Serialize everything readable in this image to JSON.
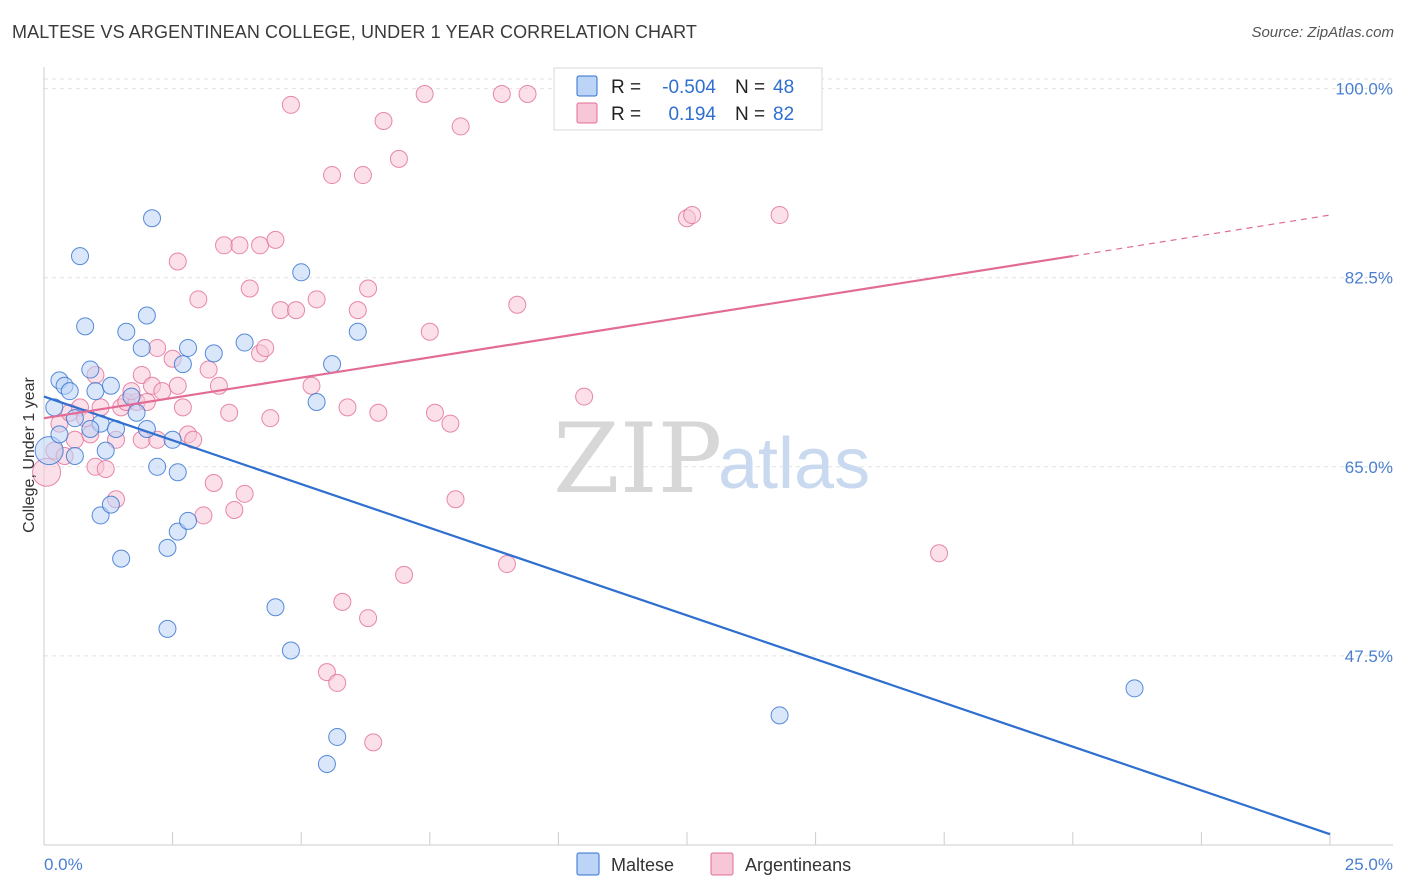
{
  "header": {
    "title": "MALTESE VS ARGENTINEAN COLLEGE, UNDER 1 YEAR CORRELATION CHART",
    "source": "Source: ZipAtlas.com"
  },
  "watermark": {
    "zip": "ZIP",
    "atlas": "atlas"
  },
  "colors": {
    "maltese": "#2f6fcf",
    "maltese_fill": "#bcd4f5",
    "argentineans": "#e26c96",
    "argentineans_fill": "#f7c7d7",
    "grid": "#dddddd",
    "tick_text": "#4a7fd0"
  },
  "stats": {
    "maltese": {
      "r_label": "R =",
      "r_value": "-0.504",
      "n_label": "N =",
      "n_value": "48"
    },
    "argentineans": {
      "r_label": "R =",
      "r_value": "0.194",
      "n_label": "N =",
      "n_value": "82"
    }
  },
  "chart_data": {
    "type": "scatter",
    "title": "MALTESE VS ARGENTINEAN COLLEGE, UNDER 1 YEAR CORRELATION CHART",
    "xlabel": "",
    "ylabel": "College, Under 1 year",
    "xlim": [
      0,
      25
    ],
    "ylim": [
      30,
      102
    ],
    "x_tick_labels": [
      "0.0%",
      "25.0%"
    ],
    "y_ticks": [
      100.0,
      82.5,
      65.0,
      47.5
    ],
    "y_tick_labels": [
      "100.0%",
      "82.5%",
      "65.0%",
      "47.5%"
    ],
    "legend": [
      "Maltese",
      "Argentineans"
    ],
    "series": [
      {
        "name": "Maltese",
        "trend": {
          "x": [
            0.0,
            25.0
          ],
          "y": [
            71.5,
            31.0
          ]
        },
        "points": [
          [
            0.1,
            66.5
          ],
          [
            0.2,
            70.5
          ],
          [
            0.3,
            73
          ],
          [
            0.4,
            72.5
          ],
          [
            0.5,
            72
          ],
          [
            0.6,
            69.5
          ],
          [
            0.6,
            66
          ],
          [
            0.7,
            84.5
          ],
          [
            0.8,
            78
          ],
          [
            0.9,
            74
          ],
          [
            1.0,
            72
          ],
          [
            1.1,
            69
          ],
          [
            1.2,
            66.5
          ],
          [
            1.1,
            60.5
          ],
          [
            1.3,
            72.5
          ],
          [
            1.3,
            61.5
          ],
          [
            1.4,
            68.5
          ],
          [
            1.5,
            56.5
          ],
          [
            1.6,
            77.5
          ],
          [
            1.7,
            71.5
          ],
          [
            1.8,
            70
          ],
          [
            1.9,
            76
          ],
          [
            2.0,
            79
          ],
          [
            2.0,
            68.5
          ],
          [
            2.1,
            88
          ],
          [
            2.2,
            65
          ],
          [
            2.4,
            57.5
          ],
          [
            2.4,
            50
          ],
          [
            2.5,
            67.5
          ],
          [
            2.6,
            64.5
          ],
          [
            2.6,
            59
          ],
          [
            2.7,
            74.5
          ],
          [
            2.8,
            76
          ],
          [
            2.8,
            60
          ],
          [
            3.3,
            75.5
          ],
          [
            3.9,
            76.5
          ],
          [
            4.5,
            52
          ],
          [
            4.8,
            48
          ],
          [
            5.0,
            83
          ],
          [
            5.3,
            71
          ],
          [
            5.5,
            37.5
          ],
          [
            5.6,
            74.5
          ],
          [
            5.7,
            40
          ],
          [
            6.1,
            77.5
          ],
          [
            14.3,
            42
          ],
          [
            21.2,
            44.5
          ],
          [
            0.3,
            68
          ],
          [
            0.9,
            68.5
          ]
        ]
      },
      {
        "name": "Argentineans",
        "trend": {
          "x": [
            0.0,
            20.0
          ],
          "y": [
            69.5,
            84.5
          ]
        },
        "trend_dashed": {
          "x": [
            20.0,
            25.0
          ],
          "y": [
            84.5,
            88.3
          ]
        },
        "points": [
          [
            0.05,
            64.5
          ],
          [
            0.2,
            66.5
          ],
          [
            0.3,
            69
          ],
          [
            0.5,
            70
          ],
          [
            0.6,
            67.5
          ],
          [
            0.7,
            70.5
          ],
          [
            0.8,
            69.5
          ],
          [
            0.9,
            68
          ],
          [
            1.0,
            73.5
          ],
          [
            1.0,
            65
          ],
          [
            1.1,
            70.5
          ],
          [
            1.2,
            64.8
          ],
          [
            1.4,
            62
          ],
          [
            1.4,
            67.5
          ],
          [
            1.5,
            70.5
          ],
          [
            1.6,
            71
          ],
          [
            1.8,
            71
          ],
          [
            1.9,
            73.5
          ],
          [
            1.9,
            67.5
          ],
          [
            2.0,
            71
          ],
          [
            2.1,
            72.5
          ],
          [
            2.2,
            67.5
          ],
          [
            2.2,
            76
          ],
          [
            2.3,
            72
          ],
          [
            2.5,
            75
          ],
          [
            2.6,
            72.5
          ],
          [
            2.6,
            84
          ],
          [
            2.7,
            70.5
          ],
          [
            2.8,
            68
          ],
          [
            2.9,
            67.5
          ],
          [
            3.0,
            80.5
          ],
          [
            3.1,
            60.5
          ],
          [
            3.2,
            74
          ],
          [
            3.3,
            63.5
          ],
          [
            3.4,
            72.5
          ],
          [
            3.5,
            85.5
          ],
          [
            3.6,
            70
          ],
          [
            3.7,
            61
          ],
          [
            3.8,
            85.5
          ],
          [
            3.9,
            62.5
          ],
          [
            4.0,
            81.5
          ],
          [
            4.2,
            75.5
          ],
          [
            4.2,
            85.5
          ],
          [
            4.3,
            76
          ],
          [
            4.4,
            69.5
          ],
          [
            4.5,
            86
          ],
          [
            4.6,
            79.5
          ],
          [
            4.8,
            98.5
          ],
          [
            4.9,
            79.5
          ],
          [
            5.2,
            72.5
          ],
          [
            5.3,
            80.5
          ],
          [
            5.5,
            46
          ],
          [
            5.6,
            92
          ],
          [
            5.7,
            45
          ],
          [
            5.8,
            52.5
          ],
          [
            5.9,
            70.5
          ],
          [
            6.1,
            79.5
          ],
          [
            6.2,
            92
          ],
          [
            6.3,
            51
          ],
          [
            6.3,
            81.5
          ],
          [
            6.4,
            39.5
          ],
          [
            6.5,
            70
          ],
          [
            6.6,
            97
          ],
          [
            6.9,
            93.5
          ],
          [
            7.0,
            55
          ],
          [
            7.4,
            99.5
          ],
          [
            7.5,
            77.5
          ],
          [
            7.6,
            70
          ],
          [
            7.9,
            69
          ],
          [
            8.0,
            62
          ],
          [
            8.1,
            96.5
          ],
          [
            8.9,
            99.5
          ],
          [
            9.0,
            56
          ],
          [
            9.2,
            80
          ],
          [
            9.4,
            99.5
          ],
          [
            10.5,
            71.5
          ],
          [
            12.5,
            88
          ],
          [
            12.6,
            88.3
          ],
          [
            14.3,
            88.3
          ],
          [
            17.4,
            57
          ],
          [
            0.4,
            66
          ],
          [
            1.7,
            72
          ]
        ]
      }
    ]
  }
}
